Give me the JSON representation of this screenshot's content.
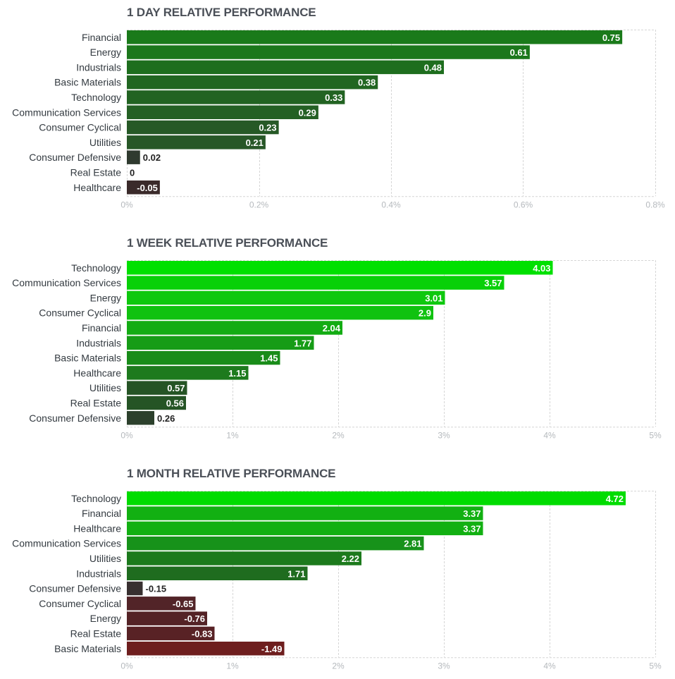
{
  "chart_data": [
    {
      "type": "bar",
      "orientation": "horizontal",
      "title": "1 DAY RELATIVE PERFORMANCE",
      "categories": [
        "Financial",
        "Energy",
        "Industrials",
        "Basic Materials",
        "Technology",
        "Communication Services",
        "Consumer Cyclical",
        "Utilities",
        "Consumer Defensive",
        "Real Estate",
        "Healthcare"
      ],
      "values": [
        0.75,
        0.61,
        0.48,
        0.38,
        0.33,
        0.29,
        0.23,
        0.21,
        0.02,
        0,
        -0.05
      ],
      "value_labels": [
        "0.75",
        "0.61",
        "0.48",
        "0.38",
        "0.33",
        "0.29",
        "0.23",
        "0.21",
        "0.02",
        "0",
        "-0.05"
      ],
      "colors": [
        "#1a7a1a",
        "#1b771b",
        "#1e6e1e",
        "#216621",
        "#226322",
        "#246024",
        "#265926",
        "#275727",
        "#2f3a2f",
        "#303030",
        "#3a2a2a"
      ],
      "xlim": [
        0,
        0.8
      ],
      "xticks": [
        0,
        0.2,
        0.4,
        0.6,
        0.8
      ],
      "xtick_labels": [
        "0%",
        "0.2%",
        "0.4%",
        "0.6%",
        "0.8%"
      ],
      "grid": true,
      "xlabel": "",
      "ylabel": ""
    },
    {
      "type": "bar",
      "orientation": "horizontal",
      "title": "1 WEEK RELATIVE PERFORMANCE",
      "categories": [
        "Technology",
        "Communication Services",
        "Energy",
        "Consumer Cyclical",
        "Financial",
        "Industrials",
        "Basic Materials",
        "Healthcare",
        "Utilities",
        "Real Estate",
        "Consumer Defensive"
      ],
      "values": [
        4.03,
        3.57,
        3.01,
        2.9,
        2.04,
        1.77,
        1.45,
        1.15,
        0.57,
        0.56,
        0.26
      ],
      "value_labels": [
        "4.03",
        "3.57",
        "3.01",
        "2.9",
        "2.04",
        "1.77",
        "1.45",
        "1.15",
        "0.57",
        "0.56",
        "0.26"
      ],
      "colors": [
        "#00e000",
        "#08d008",
        "#0ec80e",
        "#10c210",
        "#13ac13",
        "#169c16",
        "#198c19",
        "#1d7a1d",
        "#255425",
        "#255425",
        "#2c402c"
      ],
      "xlim": [
        0,
        5
      ],
      "xticks": [
        0,
        1,
        2,
        3,
        4,
        5
      ],
      "xtick_labels": [
        "0%",
        "1%",
        "2%",
        "3%",
        "4%",
        "5%"
      ],
      "grid": true,
      "xlabel": "",
      "ylabel": ""
    },
    {
      "type": "bar",
      "orientation": "horizontal",
      "title": "1 MONTH RELATIVE PERFORMANCE",
      "categories": [
        "Technology",
        "Financial",
        "Healthcare",
        "Communication Services",
        "Utilities",
        "Industrials",
        "Consumer Defensive",
        "Consumer Cyclical",
        "Energy",
        "Real Estate",
        "Basic Materials"
      ],
      "values": [
        4.72,
        3.37,
        3.37,
        2.81,
        2.22,
        1.71,
        -0.15,
        -0.65,
        -0.76,
        -0.83,
        -1.49
      ],
      "value_labels": [
        "4.72",
        "3.37",
        "3.37",
        "2.81",
        "2.22",
        "1.71",
        "-0.15",
        "-0.65",
        "-0.76",
        "-0.83",
        "-1.49"
      ],
      "colors": [
        "#00dc00",
        "#12b012",
        "#12b012",
        "#17921a",
        "#1c7a1c",
        "#1f6c1f",
        "#383030",
        "#522428",
        "#542326",
        "#582225",
        "#6e1e1e"
      ],
      "xlim": [
        0,
        5
      ],
      "xticks": [
        0,
        1,
        2,
        3,
        4,
        5
      ],
      "xtick_labels": [
        "0%",
        "1%",
        "2%",
        "3%",
        "4%",
        "5%"
      ],
      "grid": true,
      "xlabel": "",
      "ylabel": ""
    }
  ],
  "colors": {
    "title_text": "#4a4f57",
    "category_text": "#333a40",
    "tick_text": "#b5b9bd",
    "gridline": "#d6d6d6",
    "value_text_inside": "#ffffff",
    "value_text_outside": "#222222"
  }
}
